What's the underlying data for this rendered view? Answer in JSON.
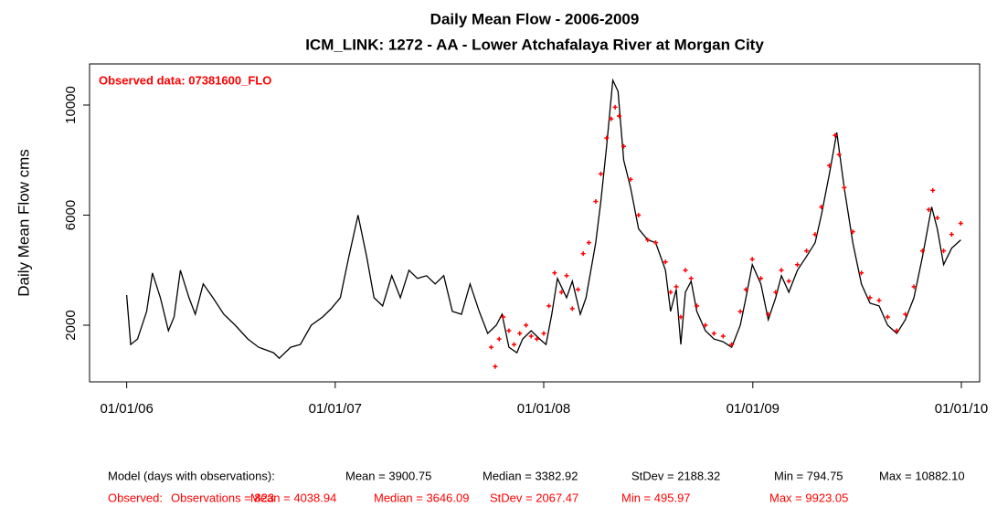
{
  "chart_data": {
    "type": "line",
    "title": "Daily Mean Flow - 2006-2009",
    "subtitle": "ICM_LINK: 1272 - AA - Lower Atchafalaya River at Morgan City",
    "y_label": "Daily Mean Flow cms",
    "annotation": "Observed data: 07381600_FLO",
    "xlim": [
      "2005-10-28",
      "2010-02-02"
    ],
    "xticks": [
      {
        "value": "2006-01-01",
        "label": "01/01/06"
      },
      {
        "value": "2007-01-01",
        "label": "01/01/07"
      },
      {
        "value": "2008-01-01",
        "label": "01/01/08"
      },
      {
        "value": "2009-01-01",
        "label": "01/01/09"
      },
      {
        "value": "2010-01-01",
        "label": "01/01/10"
      }
    ],
    "ylim": [
      -58,
      11494
    ],
    "yticks": [
      2000,
      6000,
      10000
    ],
    "series": [
      {
        "name": "Model",
        "color": "#000000",
        "x": [
          "2006-01-01",
          "2006-01-08",
          "2006-01-20",
          "2006-02-05",
          "2006-02-15",
          "2006-03-01",
          "2006-03-15",
          "2006-03-25",
          "2006-04-05",
          "2006-04-20",
          "2006-05-01",
          "2006-05-15",
          "2006-06-01",
          "2006-06-20",
          "2006-07-10",
          "2006-08-01",
          "2006-08-20",
          "2006-09-15",
          "2006-09-25",
          "2006-10-15",
          "2006-11-01",
          "2006-11-20",
          "2006-12-10",
          "2006-12-25",
          "2007-01-10",
          "2007-01-25",
          "2007-02-10",
          "2007-02-25",
          "2007-03-10",
          "2007-03-25",
          "2007-04-10",
          "2007-04-25",
          "2007-05-10",
          "2007-05-25",
          "2007-06-10",
          "2007-06-25",
          "2007-07-10",
          "2007-07-25",
          "2007-08-10",
          "2007-08-25",
          "2007-09-10",
          "2007-09-25",
          "2007-10-10",
          "2007-10-20",
          "2007-11-01",
          "2007-11-15",
          "2007-11-25",
          "2007-12-10",
          "2007-12-25",
          "2008-01-05",
          "2008-01-15",
          "2008-01-25",
          "2008-02-10",
          "2008-02-20",
          "2008-03-05",
          "2008-03-15",
          "2008-04-01",
          "2008-04-10",
          "2008-04-20",
          "2008-05-01",
          "2008-05-10",
          "2008-05-20",
          "2008-06-01",
          "2008-06-15",
          "2008-07-01",
          "2008-07-15",
          "2008-08-01",
          "2008-08-10",
          "2008-08-20",
          "2008-08-28",
          "2008-09-05",
          "2008-09-15",
          "2008-09-25",
          "2008-10-10",
          "2008-10-25",
          "2008-11-10",
          "2008-11-25",
          "2008-12-10",
          "2008-12-20",
          "2008-12-31",
          "2009-01-15",
          "2009-01-28",
          "2009-02-10",
          "2009-02-20",
          "2009-03-05",
          "2009-03-20",
          "2009-04-05",
          "2009-04-20",
          "2009-05-01",
          "2009-05-15",
          "2009-05-28",
          "2009-06-10",
          "2009-06-25",
          "2009-07-10",
          "2009-07-25",
          "2009-08-10",
          "2009-08-25",
          "2009-09-10",
          "2009-09-25",
          "2009-10-10",
          "2009-10-25",
          "2009-11-10",
          "2009-11-20",
          "2009-12-01",
          "2009-12-15",
          "2009-12-31"
        ],
        "values": [
          3100,
          1300,
          1500,
          2500,
          3900,
          3000,
          1800,
          2300,
          4000,
          3000,
          2400,
          3500,
          3000,
          2400,
          2000,
          1500,
          1200,
          1000,
          800,
          1200,
          1300,
          2000,
          2300,
          2600,
          3000,
          4500,
          6000,
          4500,
          3000,
          2700,
          3800,
          3000,
          4000,
          3700,
          3800,
          3500,
          3800,
          2500,
          2400,
          3500,
          2500,
          1700,
          2000,
          2400,
          1200,
          1000,
          1500,
          1800,
          1500,
          1300,
          2400,
          3700,
          3000,
          3600,
          2400,
          3000,
          5000,
          6500,
          8500,
          10900,
          10500,
          8000,
          7000,
          5500,
          5100,
          5000,
          4000,
          2500,
          3300,
          1300,
          3200,
          3600,
          2500,
          1800,
          1500,
          1400,
          1200,
          2000,
          3000,
          4200,
          3500,
          2200,
          3000,
          3800,
          3200,
          4000,
          4500,
          5000,
          6000,
          7500,
          9000,
          7000,
          5000,
          3500,
          2800,
          2700,
          2000,
          1700,
          2200,
          3000,
          4500,
          6300,
          5500,
          4200,
          4800,
          5100
        ]
      },
      {
        "name": "Observed",
        "color": "#ff0000",
        "x": [
          "2007-10-01",
          "2007-10-08",
          "2007-10-15",
          "2007-10-22",
          "2007-11-01",
          "2007-11-10",
          "2007-11-20",
          "2007-12-01",
          "2007-12-10",
          "2007-12-20",
          "2008-01-01",
          "2008-01-10",
          "2008-01-20",
          "2008-02-01",
          "2008-02-10",
          "2008-02-20",
          "2008-03-01",
          "2008-03-10",
          "2008-03-20",
          "2008-04-01",
          "2008-04-10",
          "2008-04-20",
          "2008-04-28",
          "2008-05-05",
          "2008-05-12",
          "2008-05-20",
          "2008-06-01",
          "2008-06-15",
          "2008-07-01",
          "2008-07-15",
          "2008-08-01",
          "2008-08-10",
          "2008-08-20",
          "2008-08-28",
          "2008-09-05",
          "2008-09-15",
          "2008-09-25",
          "2008-10-10",
          "2008-10-25",
          "2008-11-10",
          "2008-11-25",
          "2008-12-10",
          "2008-12-20",
          "2008-12-31",
          "2009-01-15",
          "2009-01-28",
          "2009-02-10",
          "2009-02-20",
          "2009-03-05",
          "2009-03-20",
          "2009-04-05",
          "2009-04-20",
          "2009-05-01",
          "2009-05-15",
          "2009-05-25",
          "2009-06-01",
          "2009-06-10",
          "2009-06-25",
          "2009-07-10",
          "2009-07-25",
          "2009-08-10",
          "2009-08-25",
          "2009-09-10",
          "2009-09-25",
          "2009-10-10",
          "2009-10-25",
          "2009-11-05",
          "2009-11-12",
          "2009-11-20",
          "2009-12-01",
          "2009-12-15",
          "2009-12-31"
        ],
        "values": [
          1200,
          500,
          1500,
          2300,
          1800,
          1300,
          1700,
          2000,
          1600,
          1500,
          1700,
          2700,
          3900,
          3200,
          3800,
          2600,
          3300,
          4600,
          5000,
          6500,
          7500,
          8800,
          9500,
          9923,
          9600,
          8500,
          7300,
          6000,
          5100,
          5000,
          4300,
          3200,
          3400,
          2300,
          4000,
          3700,
          2700,
          2000,
          1700,
          1600,
          1300,
          2500,
          3300,
          4400,
          3700,
          2400,
          3200,
          4000,
          3600,
          4200,
          4700,
          5300,
          6300,
          7800,
          8900,
          8200,
          7000,
          5400,
          3900,
          3000,
          2900,
          2300,
          1800,
          2400,
          3400,
          4700,
          6200,
          6900,
          5900,
          4700,
          5300,
          5700
        ]
      }
    ],
    "model_stats": [
      "Model (days with observations):",
      "Mean = 3900.75",
      "Median = 3382.92",
      "StDev = 2188.32",
      "Min = 794.75",
      "Max = 10882.10"
    ],
    "observed_stats": [
      "Observed:",
      "Observations = 823",
      "Mean = 4038.94",
      "Median = 3646.09",
      "StDev = 2067.47",
      "Min = 495.97",
      "Max = 9923.05"
    ]
  }
}
